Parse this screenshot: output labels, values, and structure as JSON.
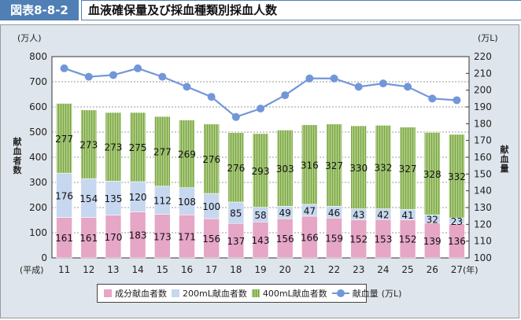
{
  "figure": {
    "number": "図表8-8-2",
    "title": "血液確保量及び採血種類別採血人数"
  },
  "colors": {
    "component": "#e6a6c6",
    "ml200": "#c6d7ef",
    "ml400": "#a8c97a",
    "line": "#7197d8",
    "tab": "#4f7fb4",
    "panel": "#dfe5ec"
  },
  "chart_data": {
    "type": "bar",
    "stacked": true,
    "title": "血液確保量及び採血種類別採血人数",
    "categories": [
      "11",
      "12",
      "13",
      "14",
      "15",
      "16",
      "17",
      "18",
      "19",
      "20",
      "21",
      "22",
      "23",
      "24",
      "25",
      "26",
      "27"
    ],
    "x_prefix": "(平成)",
    "x_suffix": "(年)",
    "y_left": {
      "label": "献血者数",
      "unit": "(万人)",
      "ylim": [
        0,
        800
      ],
      "ticks": [
        "0",
        "100",
        "200",
        "300",
        "400",
        "500",
        "600",
        "700",
        "800"
      ]
    },
    "y_right": {
      "label": "献血量",
      "unit": "(万L)",
      "ylim": [
        100,
        220
      ],
      "ticks": [
        "100",
        "110",
        "120",
        "130",
        "140",
        "150",
        "160",
        "170",
        "180",
        "190",
        "200",
        "210",
        "220"
      ]
    },
    "grid": true,
    "legend_position": "bottom",
    "series": [
      {
        "name": "成分献血者数",
        "type": "bar",
        "axis": "left",
        "values": [
          161,
          161,
          170,
          183,
          173,
          171,
          156,
          137,
          143,
          156,
          166,
          159,
          152,
          153,
          152,
          139,
          136
        ]
      },
      {
        "name": "200mL献血者数",
        "type": "bar",
        "axis": "left",
        "values": [
          176,
          154,
          135,
          120,
          112,
          108,
          100,
          85,
          58,
          49,
          47,
          46,
          43,
          42,
          41,
          32,
          23
        ]
      },
      {
        "name": "400mL献血者数",
        "type": "bar",
        "axis": "left",
        "values": [
          277,
          273,
          273,
          275,
          277,
          269,
          276,
          276,
          293,
          303,
          316,
          327,
          330,
          332,
          327,
          328,
          332
        ]
      },
      {
        "name": "献血量",
        "type": "line",
        "axis": "right",
        "values": [
          213,
          208,
          209,
          213,
          208,
          202,
          196,
          184,
          189,
          197,
          207,
          207,
          202,
          204,
          202,
          195,
          194
        ]
      }
    ]
  },
  "legend": {
    "items": [
      "成分献血者数",
      "200mL献血者数",
      "400mL献血者数",
      "献血量"
    ],
    "line_unit": "(万L)"
  }
}
